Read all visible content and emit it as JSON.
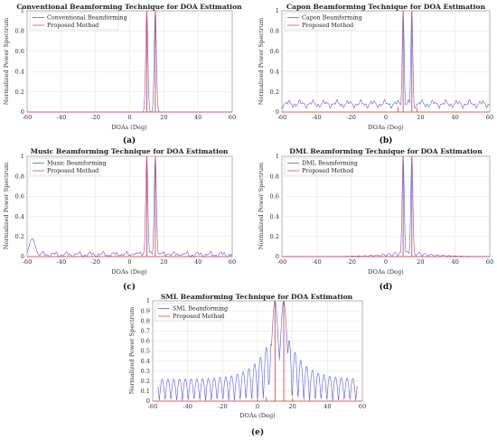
{
  "chart_data": [
    {
      "type": "line",
      "panel": "(a)",
      "title": "Conventional Beamforming Technique for DOA Estimation",
      "xlabel": "DOAs (Deg)",
      "ylabel": "Normalized Power Spectrum",
      "xlim": [
        -60,
        60
      ],
      "ylim": [
        0,
        1
      ],
      "xticks": [
        -60,
        -40,
        -20,
        0,
        20,
        40,
        60
      ],
      "yticks": [
        0,
        0.2,
        0.4,
        0.6,
        0.8,
        1
      ],
      "legend": "top-left",
      "series": [
        {
          "name": "Conventional Beamforming",
          "color": "#5b5bdb",
          "kind": "blue",
          "peaks": [
            10,
            15
          ],
          "width": 0.9,
          "sidelobe": 0.0,
          "baseline": 0.0,
          "noise": 0.0
        },
        {
          "name": "Proposed Method",
          "color": "#e8474a",
          "kind": "red",
          "spikes": [
            [
              10,
              1
            ],
            [
              15,
              1
            ]
          ]
        }
      ]
    },
    {
      "type": "line",
      "panel": "(b)",
      "title": "Capon Beamforming Technique for DOA Estimation",
      "xlabel": "DOAs (Deg)",
      "ylabel": "Normalized Power Spectrum",
      "xlim": [
        -60,
        60
      ],
      "ylim": [
        0,
        1
      ],
      "xticks": [
        -60,
        -40,
        -20,
        0,
        20,
        40,
        60
      ],
      "yticks": [
        0,
        0.2,
        0.4,
        0.6,
        0.8,
        1
      ],
      "legend": "top-left",
      "series": [
        {
          "name": "Capon Beamforming",
          "color": "#5b5bdb",
          "kind": "blue",
          "peaks": [
            10,
            15
          ],
          "width": 0.8,
          "sidelobe": 0.02,
          "baseline": 0.08,
          "noise": 0.045
        },
        {
          "name": "Proposed Method",
          "color": "#e8474a",
          "kind": "red",
          "spikes": [
            [
              10,
              1
            ],
            [
              15,
              1
            ],
            [
              7,
              0.05
            ],
            [
              18,
              0.04
            ]
          ]
        }
      ]
    },
    {
      "type": "line",
      "panel": "(c)",
      "title": "Music Beamforming Technique for DOA Estimation",
      "xlabel": "DOAs (Deg)",
      "ylabel": "Normalized Power Spectrum",
      "xlim": [
        -60,
        60
      ],
      "ylim": [
        0,
        1
      ],
      "xticks": [
        -60,
        -40,
        -20,
        0,
        20,
        40,
        60
      ],
      "yticks": [
        0,
        0.2,
        0.4,
        0.6,
        0.8,
        1
      ],
      "legend": "top-left",
      "series": [
        {
          "name": "Music Beamforming",
          "color": "#5b5bdb",
          "kind": "blue",
          "peaks": [
            10,
            15
          ],
          "width": 0.9,
          "sidelobe": 0.05,
          "baseline": 0.02,
          "noise": 0.035,
          "bump": [
            -57,
            0.18
          ]
        },
        {
          "name": "Proposed Method",
          "color": "#e8474a",
          "kind": "red",
          "spikes": [
            [
              10,
              1
            ],
            [
              15,
              1
            ]
          ]
        }
      ]
    },
    {
      "type": "line",
      "panel": "(d)",
      "title": "DML Beamforming Technique for DOA Estimation",
      "xlabel": "DOAs (Deg)",
      "ylabel": "Normalized Power Spectrum",
      "xlim": [
        -60,
        60
      ],
      "ylim": [
        0,
        1
      ],
      "xticks": [
        -60,
        -40,
        -20,
        0,
        20,
        40,
        60
      ],
      "yticks": [
        0,
        0.2,
        0.4,
        0.6,
        0.8,
        1
      ],
      "legend": "top-left",
      "series": [
        {
          "name": "DML Beamforming",
          "color": "#5b5bdb",
          "kind": "blue",
          "peaks": [
            10,
            15
          ],
          "width": 0.85,
          "sidelobe": 0.06,
          "baseline": 0.0,
          "noise": 0.0
        },
        {
          "name": "Proposed Method",
          "color": "#e8474a",
          "kind": "red",
          "spikes": [
            [
              10,
              1
            ],
            [
              15,
              1
            ]
          ]
        }
      ]
    },
    {
      "type": "line",
      "panel": "(e)",
      "title": "SML Beamforming Technique for DOA Estimation",
      "xlabel": "DOAs (Deg)",
      "ylabel": "Normalized Power Spectrum",
      "xlim": [
        -60,
        60
      ],
      "ylim": [
        0,
        1
      ],
      "xticks": [
        -60,
        -40,
        -20,
        0,
        20,
        40,
        60
      ],
      "yticks": [
        0,
        0.1,
        0.2,
        0.3,
        0.4,
        0.5,
        0.6,
        0.7,
        0.8,
        0.9,
        1
      ],
      "legend": "top-left",
      "series": [
        {
          "name": "SML Beamforming",
          "color": "#5b5bdb",
          "kind": "sml",
          "peaks": [
            10,
            15
          ],
          "width": 2.2,
          "sidelobe": 0.0,
          "baseline": 0.0,
          "noise": 0.0
        },
        {
          "name": "Proposed Method",
          "color": "#e8474a",
          "kind": "red",
          "spikes": [
            [
              10,
              1
            ],
            [
              15,
              1
            ],
            [
              5,
              0.04
            ],
            [
              20,
              0.03
            ]
          ]
        }
      ]
    }
  ]
}
